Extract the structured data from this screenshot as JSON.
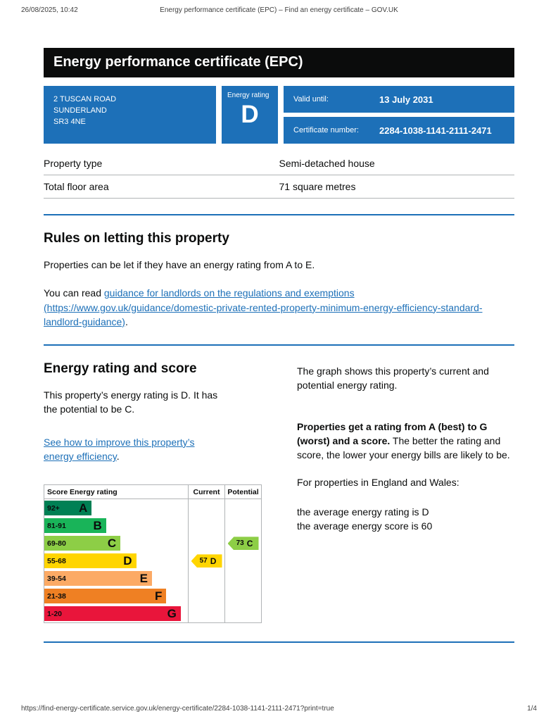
{
  "colors": {
    "govuk_blue": "#1d70b8",
    "banner_black": "#0b0c0c",
    "link_blue": "#1d70b8"
  },
  "print_header": {
    "datetime": "26/08/2025, 10:42",
    "title": "Energy performance certificate (EPC) – Find an energy certificate – GOV.UK"
  },
  "banner": {
    "title": "Energy performance certificate (EPC)"
  },
  "summary": {
    "address_lines": [
      "2 TUSCAN ROAD",
      "SUNDERLAND",
      "SR3 4NE"
    ],
    "energy_rating_label": "Energy rating",
    "energy_rating": "D",
    "valid_until_label": "Valid until:",
    "valid_until": "13 July 2031",
    "certificate_number_label": "Certificate number:",
    "certificate_number": "2284-1038-1141-2111-2471"
  },
  "property_table": {
    "rows": [
      {
        "label": "Property type",
        "value": "Semi-detached house"
      },
      {
        "label": "Total floor area",
        "value": "71 square metres"
      }
    ]
  },
  "rules_section": {
    "heading": "Rules on letting this property",
    "paragraph1": "Properties can be let if they have an energy rating from A to E.",
    "paragraph2_prefix": "You can read ",
    "link_text": "guidance for landlords on the regulations and exemptions (https://www.gov.uk/guidance/domestic-private-rented-property-minimum-energy-efficiency-standard-landlord-guidance)",
    "paragraph2_suffix": "."
  },
  "rating_section": {
    "heading": "Energy rating and score",
    "left_paragraph": "This property’s energy rating is D. It has the potential to be C.",
    "improve_link_text": "See how to improve this property’s energy efficiency",
    "improve_link_suffix": ".",
    "right_paragraph1": "The graph shows this property’s current and potential energy rating.",
    "right_paragraph2_bold": "Properties get a rating from A (best) to G (worst) and a score.",
    "right_paragraph2_rest": " The better the rating and score, the lower your energy bills are likely to be.",
    "right_paragraph3": "For properties in England and Wales:",
    "avg_rating_line": "the average energy rating is D",
    "avg_score_line": "the average energy score is 60"
  },
  "chart_data": {
    "type": "bar",
    "title": "Energy rating and score",
    "columns": [
      "Score",
      "Energy rating",
      "Current",
      "Potential"
    ],
    "bands": [
      {
        "score": "92+",
        "letter": "A",
        "color": "#008054",
        "width_pct": 33
      },
      {
        "score": "81-91",
        "letter": "B",
        "color": "#19b459",
        "width_pct": 43
      },
      {
        "score": "69-80",
        "letter": "C",
        "color": "#8dce46",
        "width_pct": 53
      },
      {
        "score": "55-68",
        "letter": "D",
        "color": "#ffd500",
        "width_pct": 64
      },
      {
        "score": "39-54",
        "letter": "E",
        "color": "#fcaa65",
        "width_pct": 75
      },
      {
        "score": "21-38",
        "letter": "F",
        "color": "#ef8023",
        "width_pct": 85
      },
      {
        "score": "1-20",
        "letter": "G",
        "color": "#e9153b",
        "width_pct": 95
      }
    ],
    "current": {
      "score": 57,
      "letter": "D",
      "color": "#ffd500"
    },
    "potential": {
      "score": 73,
      "letter": "C",
      "color": "#8dce46"
    },
    "legend_position": "top-columns",
    "grid": false
  },
  "footer": {
    "url": "https://find-energy-certificate.service.gov.uk/energy-certificate/2284-1038-1141-2111-2471?print=true",
    "page": "1/4"
  }
}
